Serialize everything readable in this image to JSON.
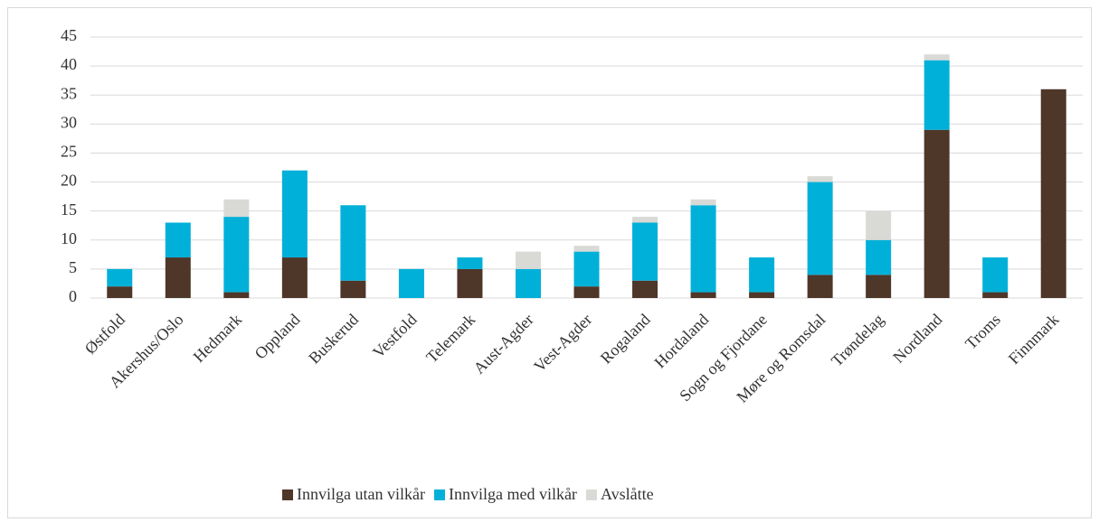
{
  "chart_data": {
    "type": "stacked_bar",
    "categories": [
      "Østfold",
      "Akershus/Oslo",
      "Hedmark",
      "Oppland",
      "Buskerud",
      "Vestfold",
      "Telemark",
      "Aust-Agder",
      "Vest-Agder",
      "Rogaland",
      "Hordaland",
      "Sogn og Fjordane",
      "Møre og Romsdal",
      "Trøndelag",
      "Nordland",
      "Troms",
      "Finnmark"
    ],
    "series": [
      {
        "name": "Innvilga utan vilkår",
        "color": "#4e3629",
        "values": [
          2,
          7,
          1,
          7,
          3,
          0,
          5,
          0,
          2,
          3,
          1,
          1,
          4,
          4,
          29,
          1,
          36
        ]
      },
      {
        "name": "Innvilga med vilkår",
        "color": "#00b0d8",
        "values": [
          3,
          6,
          13,
          15,
          13,
          5,
          2,
          5,
          6,
          10,
          15,
          6,
          16,
          6,
          12,
          6,
          0
        ]
      },
      {
        "name": "Avslåtte",
        "color": "#d9d9d6",
        "values": [
          0,
          0,
          3,
          0,
          0,
          0,
          0,
          3,
          1,
          1,
          1,
          0,
          1,
          5,
          1,
          0,
          0
        ]
      }
    ],
    "ylim": [
      0,
      45
    ],
    "yticks": [
      0,
      5,
      10,
      15,
      20,
      25,
      30,
      35,
      40,
      45
    ],
    "grid": true,
    "legend": "bottom"
  }
}
